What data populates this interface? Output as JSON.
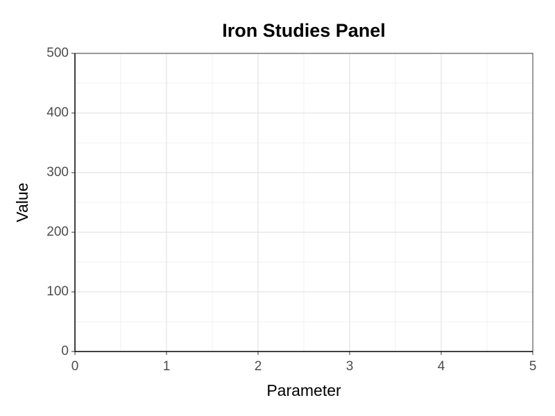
{
  "chart_data": {
    "type": "scatter",
    "title": "Iron Studies Panel",
    "x_label": "Parameter",
    "y_label": "Value",
    "xlim": [
      0,
      5
    ],
    "xticks": [
      0,
      1,
      2,
      3,
      4,
      5
    ],
    "ylim": [
      0,
      500
    ],
    "yticks": [
      0,
      100,
      200,
      300,
      400,
      500
    ],
    "grid": true,
    "minor_grid": true
  }
}
